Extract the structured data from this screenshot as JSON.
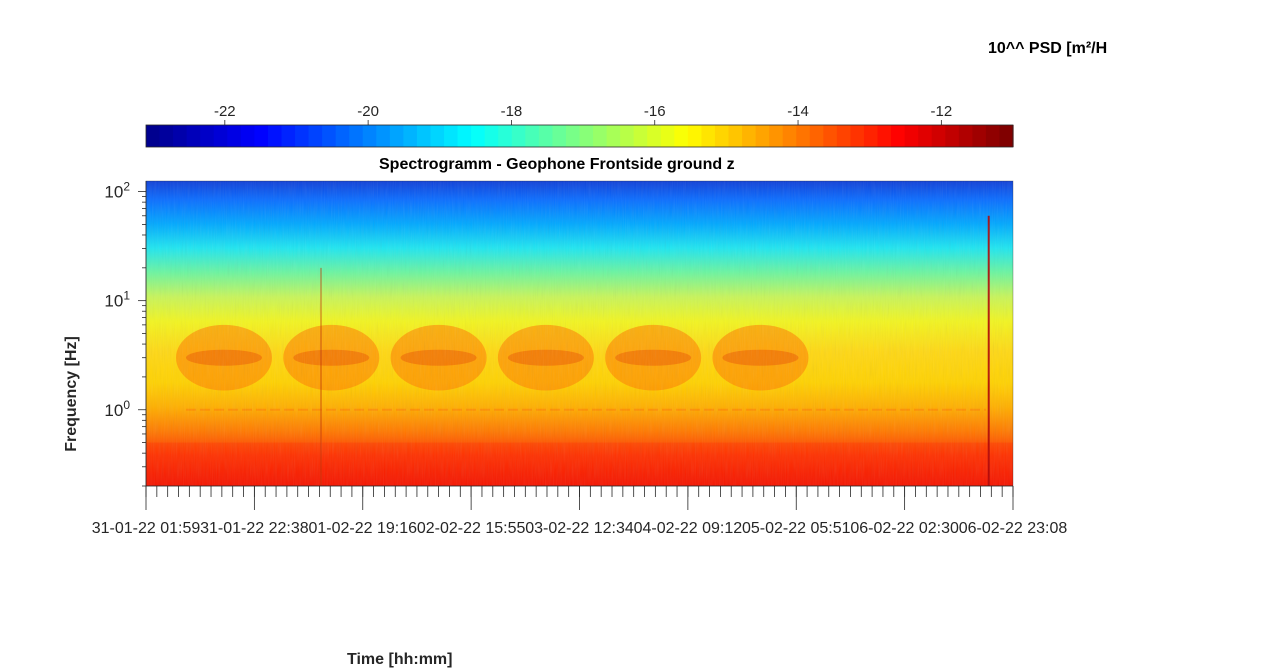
{
  "colors": {
    "colormap": [
      "#00008f",
      "#0000ff",
      "#0080ff",
      "#00ffff",
      "#80ff80",
      "#ffff00",
      "#ff8000",
      "#ff0000",
      "#800000"
    ],
    "axis": "#262626",
    "background": "#ffffff"
  },
  "chart_data": {
    "type": "heatmap",
    "title": "Spectrogramm - Geophone Frontside ground z",
    "xlabel": "Time [hh:mm]",
    "ylabel": "Frequency [Hz]",
    "colorbar": {
      "label": "10^^ PSD [m²/H",
      "range": [
        -23.1,
        -11.0
      ],
      "ticks": [
        -22,
        -20,
        -18,
        -16,
        -14,
        -12
      ],
      "tick_labels": [
        "-22",
        "-20",
        "-18",
        "-16",
        "-14",
        "-12"
      ],
      "orientation": "horizontal",
      "placement": "top"
    },
    "x_axis": {
      "start": "31-01-22 01:59",
      "end": "06-02-22 23:08",
      "tick_labels": [
        "31-01-22 01:59",
        "31-01-22 22:38",
        "01-02-22 19:16",
        "02-02-22 15:55",
        "03-02-22 12:34",
        "04-02-22 09:12",
        "05-02-22 05:51",
        "06-02-22 02:30",
        "06-02-22 23:08"
      ]
    },
    "y_axis": {
      "scale": "log",
      "range": [
        0.2,
        125
      ],
      "ticks": [
        1,
        10,
        100
      ],
      "tick_labels": [
        "10^0",
        "10^1",
        "10^2"
      ]
    },
    "colormap": "jet",
    "description_values": {
      "high_frequency_psd_exp": -21.5,
      "mid_frequency_psd_exp": -17.5,
      "low_frequency_psd_exp": -12.5,
      "daytime_band_hz": [
        1.5,
        6
      ],
      "persistent_line_hz": 1.0,
      "transient_event_at": "06-02-22 19:30"
    }
  }
}
